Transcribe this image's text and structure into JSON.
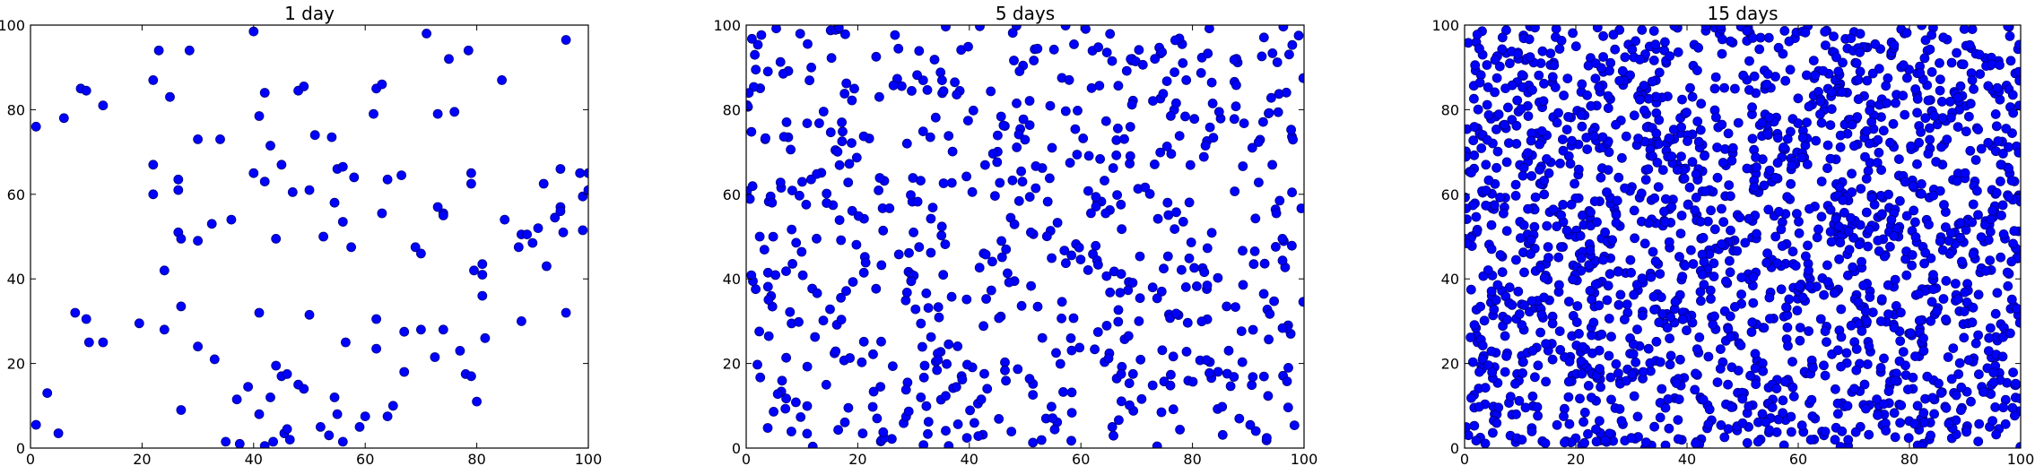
{
  "marker_color": "#0000ff",
  "marker_edge_color": "#000080",
  "chart_data": [
    {
      "type": "scatter",
      "title": "1 day",
      "xlabel": "",
      "ylabel": "",
      "xlim": [
        0,
        100
      ],
      "ylim": [
        0,
        100
      ],
      "xticks": [
        "0",
        "20",
        "40",
        "60",
        "80",
        "100"
      ],
      "yticks": [
        "0",
        "20",
        "40",
        "60",
        "80",
        "100"
      ],
      "grid": false,
      "legend": "none",
      "points": [
        [
          1,
          76
        ],
        [
          1,
          5.5
        ],
        [
          3,
          13
        ],
        [
          5,
          3.5
        ],
        [
          6,
          78
        ],
        [
          8,
          32
        ],
        [
          9,
          85
        ],
        [
          10,
          84.5
        ],
        [
          10,
          30.5
        ],
        [
          10.5,
          25
        ],
        [
          13,
          81
        ],
        [
          13,
          25
        ],
        [
          19.5,
          29.5
        ],
        [
          22,
          87
        ],
        [
          22,
          67
        ],
        [
          22,
          60
        ],
        [
          23,
          94
        ],
        [
          24,
          42
        ],
        [
          24,
          28
        ],
        [
          25,
          83
        ],
        [
          26.5,
          51
        ],
        [
          26.5,
          61
        ],
        [
          26.5,
          63.5
        ],
        [
          27,
          33.5
        ],
        [
          27,
          49.5
        ],
        [
          27,
          9
        ],
        [
          28.5,
          94
        ],
        [
          30,
          73
        ],
        [
          30,
          49
        ],
        [
          30,
          24
        ],
        [
          32.5,
          53
        ],
        [
          33,
          21
        ],
        [
          34,
          73
        ],
        [
          35,
          1.5
        ],
        [
          36,
          54
        ],
        [
          37,
          11.5
        ],
        [
          37.5,
          1
        ],
        [
          39,
          14.5
        ],
        [
          40,
          65
        ],
        [
          40,
          98.5
        ],
        [
          41,
          32
        ],
        [
          41,
          8
        ],
        [
          41,
          78.5
        ],
        [
          42,
          84
        ],
        [
          42,
          63
        ],
        [
          42,
          0.5
        ],
        [
          43,
          12
        ],
        [
          43,
          71.5
        ],
        [
          43.5,
          1.5
        ],
        [
          44,
          49.5
        ],
        [
          44,
          19.5
        ],
        [
          45,
          67
        ],
        [
          45,
          17
        ],
        [
          45.5,
          3.5
        ],
        [
          46,
          17.5
        ],
        [
          46,
          4.5
        ],
        [
          46.5,
          2
        ],
        [
          47,
          60.5
        ],
        [
          48,
          84.5
        ],
        [
          48,
          15
        ],
        [
          49,
          85.5
        ],
        [
          49,
          14
        ],
        [
          50,
          61
        ],
        [
          50,
          31.5
        ],
        [
          51,
          74
        ],
        [
          52,
          5
        ],
        [
          52.5,
          50
        ],
        [
          53.5,
          3
        ],
        [
          54,
          73.5
        ],
        [
          54.5,
          58
        ],
        [
          54.5,
          12
        ],
        [
          55,
          66
        ],
        [
          55,
          8
        ],
        [
          56,
          66.5
        ],
        [
          56,
          53.5
        ],
        [
          56,
          1.5
        ],
        [
          56.5,
          25
        ],
        [
          57.5,
          47.5
        ],
        [
          58,
          64
        ],
        [
          59,
          5
        ],
        [
          60,
          7.5
        ],
        [
          61.5,
          79
        ],
        [
          62,
          85
        ],
        [
          62,
          30.5
        ],
        [
          62,
          23.5
        ],
        [
          63,
          55.5
        ],
        [
          63,
          86
        ],
        [
          64,
          63.5
        ],
        [
          64,
          7.5
        ],
        [
          65,
          10
        ],
        [
          66.5,
          64.5
        ],
        [
          67,
          27.5
        ],
        [
          67,
          18
        ],
        [
          69,
          47.5
        ],
        [
          70,
          46
        ],
        [
          70,
          28
        ],
        [
          71,
          98
        ],
        [
          72.5,
          21.5
        ],
        [
          73,
          57
        ],
        [
          73,
          79
        ],
        [
          74,
          55.5
        ],
        [
          74,
          55
        ],
        [
          74,
          28
        ],
        [
          75,
          92
        ],
        [
          76,
          79.5
        ],
        [
          77,
          23
        ],
        [
          78,
          17.5
        ],
        [
          78.5,
          94
        ],
        [
          79,
          17
        ],
        [
          79,
          65
        ],
        [
          79,
          62.5
        ],
        [
          79.5,
          42
        ],
        [
          80,
          11
        ],
        [
          81,
          43.5
        ],
        [
          81,
          36
        ],
        [
          81,
          41
        ],
        [
          81.5,
          26
        ],
        [
          84.5,
          87
        ],
        [
          85,
          54
        ],
        [
          87.5,
          47.5
        ],
        [
          88,
          50.5
        ],
        [
          88,
          30
        ],
        [
          89,
          50.5
        ],
        [
          90,
          48.5
        ],
        [
          91,
          52
        ],
        [
          92,
          62.5
        ],
        [
          92.5,
          43
        ],
        [
          94,
          54.5
        ],
        [
          95,
          57
        ],
        [
          95,
          66
        ],
        [
          95,
          56
        ],
        [
          95.5,
          51
        ],
        [
          96,
          96.5
        ],
        [
          96,
          32
        ],
        [
          98.5,
          65
        ],
        [
          99,
          59.5
        ],
        [
          99,
          51.5
        ],
        [
          100,
          65
        ],
        [
          100,
          61
        ]
      ]
    },
    {
      "type": "scatter",
      "title": "5 days",
      "xlabel": "",
      "ylabel": "",
      "xlim": [
        0,
        100
      ],
      "ylim": [
        0,
        100
      ],
      "xticks": [
        "0",
        "20",
        "40",
        "60",
        "80",
        "100"
      ],
      "yticks": [
        "0",
        "20",
        "40",
        "60",
        "80",
        "100"
      ],
      "grid": false,
      "legend": "none",
      "random_seed": 2025,
      "n_points": 640
    },
    {
      "type": "scatter",
      "title": "15 days",
      "xlabel": "",
      "ylabel": "",
      "xlim": [
        0,
        100
      ],
      "ylim": [
        0,
        100
      ],
      "xticks": [
        "0",
        "20",
        "40",
        "60",
        "80",
        "100"
      ],
      "yticks": [
        "0",
        "20",
        "40",
        "60",
        "80",
        "100"
      ],
      "grid": false,
      "legend": "none",
      "random_seed": 7919,
      "n_points": 1900
    }
  ]
}
